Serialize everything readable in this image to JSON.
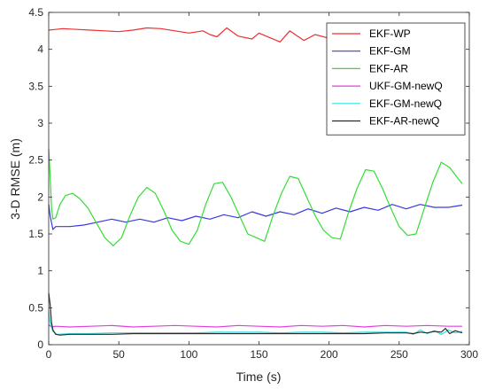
{
  "chart_data": {
    "type": "line",
    "xlabel": "Time (s)",
    "ylabel": "3-D RMSE (m)",
    "xlim": [
      0,
      300
    ],
    "ylim": [
      0,
      4.5
    ],
    "xticks": [
      0,
      50,
      100,
      150,
      200,
      250,
      300
    ],
    "yticks": [
      0,
      0.5,
      1,
      1.5,
      2,
      2.5,
      3,
      3.5,
      4,
      4.5
    ],
    "xtick_labels": [
      "0",
      "50",
      "100",
      "150",
      "200",
      "250",
      "300"
    ],
    "ytick_labels": [
      "0",
      "0.5",
      "1",
      "1.5",
      "2",
      "2.5",
      "3",
      "3.5",
      "4",
      "4.5"
    ],
    "grid": false,
    "legend_position": "top-right",
    "series": [
      {
        "name": "EKF-WP",
        "color": "#ee3030",
        "x": [
          0,
          5,
          10,
          20,
          30,
          40,
          50,
          60,
          70,
          80,
          90,
          100,
          110,
          115,
          120,
          127,
          135,
          145,
          150,
          155,
          165,
          172,
          182,
          190,
          200,
          210,
          220,
          230,
          240,
          250,
          260,
          270,
          280,
          290,
          295
        ],
        "y": [
          4.26,
          4.27,
          4.28,
          4.27,
          4.26,
          4.25,
          4.24,
          4.26,
          4.29,
          4.28,
          4.25,
          4.22,
          4.25,
          4.2,
          4.17,
          4.29,
          4.18,
          4.14,
          4.22,
          4.18,
          4.1,
          4.25,
          4.12,
          4.2,
          4.15,
          4.12,
          4.18,
          4.2,
          4.15,
          4.18,
          4.22,
          4.2,
          4.23,
          4.22,
          4.23
        ]
      },
      {
        "name": "EKF-GM",
        "color": "#3a3ae0",
        "x": [
          0,
          1,
          3,
          5,
          10,
          15,
          25,
          35,
          45,
          55,
          65,
          75,
          85,
          95,
          105,
          115,
          125,
          135,
          145,
          155,
          165,
          175,
          185,
          195,
          205,
          215,
          225,
          235,
          245,
          255,
          265,
          275,
          285,
          295
        ],
        "y": [
          1.9,
          1.75,
          1.56,
          1.6,
          1.6,
          1.6,
          1.62,
          1.66,
          1.7,
          1.66,
          1.7,
          1.66,
          1.72,
          1.68,
          1.74,
          1.7,
          1.76,
          1.72,
          1.8,
          1.74,
          1.8,
          1.76,
          1.84,
          1.78,
          1.85,
          1.8,
          1.86,
          1.82,
          1.9,
          1.84,
          1.9,
          1.86,
          1.86,
          1.89
        ]
      },
      {
        "name": "EKF-AR",
        "color": "#33dd33",
        "x": [
          0,
          1,
          2,
          3,
          5,
          8,
          12,
          17,
          22,
          28,
          34,
          40,
          46,
          52,
          58,
          64,
          70,
          76,
          82,
          88,
          94,
          100,
          106,
          112,
          118,
          124,
          130,
          136,
          142,
          148,
          154,
          160,
          166,
          172,
          178,
          184,
          190,
          196,
          202,
          208,
          214,
          220,
          226,
          232,
          238,
          244,
          250,
          256,
          262,
          268,
          274,
          280,
          286,
          292,
          295
        ],
        "y": [
          2.65,
          2.3,
          1.85,
          1.7,
          1.72,
          1.9,
          2.02,
          2.05,
          1.98,
          1.85,
          1.65,
          1.45,
          1.34,
          1.45,
          1.75,
          2.0,
          2.13,
          2.05,
          1.82,
          1.55,
          1.4,
          1.36,
          1.55,
          1.9,
          2.18,
          2.2,
          2.0,
          1.75,
          1.5,
          1.45,
          1.4,
          1.75,
          2.05,
          2.28,
          2.25,
          2.0,
          1.75,
          1.55,
          1.45,
          1.43,
          1.8,
          2.12,
          2.37,
          2.35,
          2.12,
          1.85,
          1.6,
          1.48,
          1.5,
          1.85,
          2.2,
          2.47,
          2.4,
          2.25,
          2.18
        ]
      },
      {
        "name": "UKF-GM-newQ",
        "color": "#e040e0",
        "x": [
          0,
          2,
          5,
          15,
          30,
          45,
          60,
          75,
          90,
          105,
          120,
          135,
          150,
          165,
          180,
          195,
          210,
          225,
          240,
          255,
          270,
          285,
          295
        ],
        "y": [
          0.27,
          0.24,
          0.25,
          0.24,
          0.25,
          0.26,
          0.24,
          0.25,
          0.26,
          0.25,
          0.24,
          0.26,
          0.25,
          0.24,
          0.26,
          0.25,
          0.26,
          0.24,
          0.26,
          0.25,
          0.26,
          0.25,
          0.25
        ]
      },
      {
        "name": "EKF-GM-newQ",
        "color": "#33dddd",
        "x": [
          0,
          1,
          3,
          6,
          15,
          30,
          45,
          60,
          75,
          90,
          105,
          120,
          135,
          150,
          165,
          180,
          195,
          210,
          225,
          240,
          255,
          260,
          265,
          270,
          275,
          280,
          285,
          290,
          295
        ],
        "y": [
          0.45,
          0.3,
          0.18,
          0.14,
          0.15,
          0.15,
          0.16,
          0.16,
          0.16,
          0.16,
          0.16,
          0.17,
          0.17,
          0.17,
          0.16,
          0.17,
          0.17,
          0.16,
          0.17,
          0.17,
          0.17,
          0.14,
          0.2,
          0.15,
          0.19,
          0.14,
          0.2,
          0.16,
          0.18
        ]
      },
      {
        "name": "EKF-AR-newQ",
        "color": "#2b2b2b",
        "x": [
          0,
          1,
          2,
          3,
          5,
          8,
          15,
          30,
          45,
          60,
          75,
          90,
          105,
          120,
          135,
          150,
          165,
          180,
          195,
          210,
          225,
          240,
          255,
          260,
          265,
          270,
          275,
          280,
          283,
          286,
          290,
          295
        ],
        "y": [
          0.7,
          0.55,
          0.3,
          0.2,
          0.14,
          0.13,
          0.14,
          0.14,
          0.14,
          0.15,
          0.15,
          0.15,
          0.15,
          0.15,
          0.15,
          0.15,
          0.15,
          0.15,
          0.15,
          0.15,
          0.15,
          0.16,
          0.16,
          0.15,
          0.17,
          0.16,
          0.18,
          0.17,
          0.22,
          0.15,
          0.19,
          0.16
        ]
      }
    ]
  }
}
